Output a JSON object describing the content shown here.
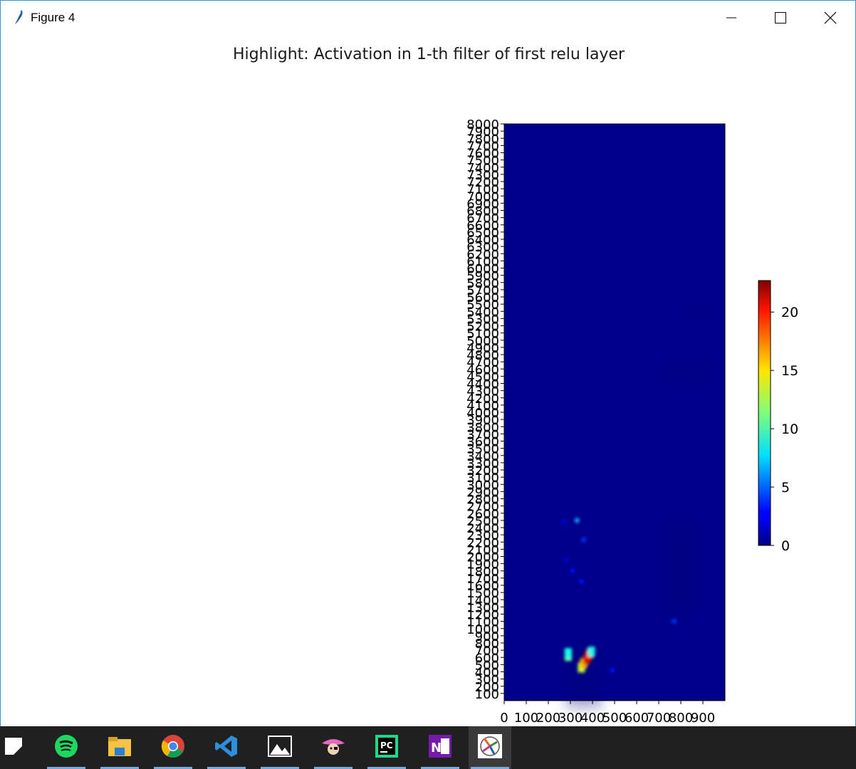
{
  "window": {
    "title": "Figure 4"
  },
  "icons": {
    "app": "feather-icon",
    "minimize": "minimize-icon",
    "maximize": "maximize-icon",
    "close": "close-icon"
  },
  "chart_data": {
    "type": "heatmap",
    "title": "Highlight: Activation in 1-th filter of first relu layer",
    "xlabel": "",
    "ylabel": "",
    "xlim": [
      0,
      1000
    ],
    "ylim": [
      0,
      8000
    ],
    "x_ticks": [
      "0",
      "100",
      "200",
      "300",
      "400",
      "500",
      "600",
      "700",
      "800",
      "900"
    ],
    "y_ticks": [
      "100",
      "200",
      "300",
      "400",
      "500",
      "600",
      "700",
      "800",
      "900",
      "1000",
      "1100",
      "1200",
      "1300",
      "1400",
      "1500",
      "1600",
      "1700",
      "1800",
      "1900",
      "2000",
      "2100",
      "2200",
      "2300",
      "2400",
      "2500",
      "2600",
      "2700",
      "2800",
      "2900",
      "3000",
      "3100",
      "3200",
      "3300",
      "3400",
      "3500",
      "3600",
      "3700",
      "3800",
      "3900",
      "4000",
      "4100",
      "4200",
      "4300",
      "4400",
      "4500",
      "4600",
      "4700",
      "4800",
      "4900",
      "5000",
      "5100",
      "5200",
      "5300",
      "5400",
      "5500",
      "5600",
      "5700",
      "5800",
      "5900",
      "6000",
      "6100",
      "6200",
      "6300",
      "6400",
      "6500",
      "6600",
      "6700",
      "6800",
      "6900",
      "7000",
      "7100",
      "7200",
      "7300",
      "7400",
      "7500",
      "7600",
      "7700",
      "7800",
      "7900",
      "8000"
    ],
    "colormap": "jet",
    "colorbar": {
      "min": 0,
      "max": 22.7,
      "ticks": [
        "0",
        "5",
        "10",
        "15",
        "20"
      ],
      "location": "right"
    },
    "background_value": 0.3,
    "hotspots": [
      {
        "x": 290,
        "y": 620,
        "value": 11
      },
      {
        "x": 290,
        "y": 660,
        "value": 9
      },
      {
        "x": 350,
        "y": 460,
        "value": 13
      },
      {
        "x": 360,
        "y": 520,
        "value": 16
      },
      {
        "x": 375,
        "y": 580,
        "value": 21
      },
      {
        "x": 385,
        "y": 640,
        "value": 19
      },
      {
        "x": 395,
        "y": 680,
        "value": 9
      },
      {
        "x": 330,
        "y": 2500,
        "value": 7
      },
      {
        "x": 360,
        "y": 2230,
        "value": 4
      },
      {
        "x": 350,
        "y": 1650,
        "value": 3
      },
      {
        "x": 310,
        "y": 1800,
        "value": 3
      },
      {
        "x": 770,
        "y": 1100,
        "value": 4
      },
      {
        "x": 490,
        "y": 420,
        "value": 3
      },
      {
        "x": 270,
        "y": 2480,
        "value": 2
      },
      {
        "x": 280,
        "y": 1950,
        "value": 2
      }
    ]
  },
  "taskbar": {
    "items": [
      {
        "name": "sticky-notes-icon",
        "color": "#ffffff"
      },
      {
        "name": "spotify-icon",
        "color": "#1ed760"
      },
      {
        "name": "file-explorer-icon",
        "color": "#f5c342"
      },
      {
        "name": "chrome-icon",
        "color": "#db4437"
      },
      {
        "name": "vscode-icon",
        "color": "#2b8fd9"
      },
      {
        "name": "photos-icon",
        "color": "#ffffff"
      },
      {
        "name": "pirate-app-icon",
        "color": "#e36bbf"
      },
      {
        "name": "pycharm-icon",
        "color": "#21d789"
      },
      {
        "name": "onenote-icon",
        "color": "#7719aa"
      },
      {
        "name": "python-figure-icon",
        "color": "#e8602c"
      }
    ]
  }
}
